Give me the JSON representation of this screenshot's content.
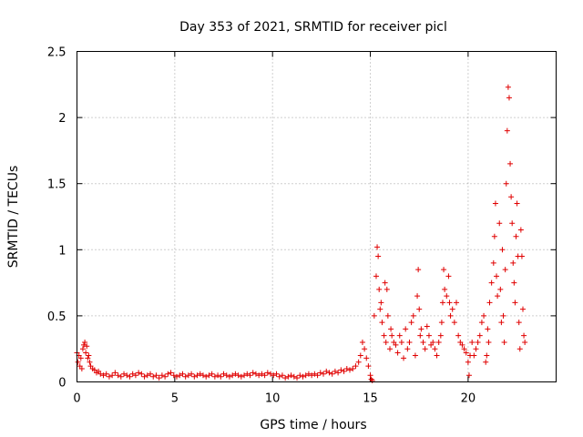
{
  "chart_data": {
    "type": "scatter",
    "title": "Day 353 of 2021, SRMTID for receiver picl",
    "xlabel": "GPS time / hours",
    "ylabel": "SRMTID / TECUs",
    "xlim": [
      0,
      24.5
    ],
    "ylim": [
      0,
      2.5
    ],
    "xticks": [
      0,
      5,
      10,
      15,
      20
    ],
    "xtick_labels": [
      "0",
      "5",
      "10",
      "15",
      "20"
    ],
    "yticks": [
      0,
      0.5,
      1,
      1.5,
      2,
      2.5
    ],
    "ytick_labels": [
      "0",
      "0.5",
      "1",
      "1.5",
      "2",
      "2.5"
    ],
    "grid": true,
    "marker": "+",
    "series": [
      {
        "name": "SRMTID",
        "color": "#e00000",
        "points": [
          [
            0.0,
            0.22
          ],
          [
            0.05,
            0.15
          ],
          [
            0.1,
            0.2
          ],
          [
            0.15,
            0.12
          ],
          [
            0.2,
            0.18
          ],
          [
            0.25,
            0.1
          ],
          [
            0.3,
            0.25
          ],
          [
            0.35,
            0.28
          ],
          [
            0.4,
            0.3
          ],
          [
            0.45,
            0.22
          ],
          [
            0.5,
            0.27
          ],
          [
            0.55,
            0.18
          ],
          [
            0.6,
            0.2
          ],
          [
            0.65,
            0.15
          ],
          [
            0.7,
            0.12
          ],
          [
            0.8,
            0.1
          ],
          [
            0.9,
            0.09
          ],
          [
            1.0,
            0.07
          ],
          [
            1.1,
            0.08
          ],
          [
            1.2,
            0.06
          ],
          [
            1.35,
            0.05
          ],
          [
            1.5,
            0.06
          ],
          [
            1.65,
            0.04
          ],
          [
            1.8,
            0.05
          ],
          [
            1.95,
            0.07
          ],
          [
            2.1,
            0.05
          ],
          [
            2.25,
            0.04
          ],
          [
            2.4,
            0.06
          ],
          [
            2.55,
            0.05
          ],
          [
            2.7,
            0.04
          ],
          [
            2.85,
            0.06
          ],
          [
            3.0,
            0.05
          ],
          [
            3.15,
            0.07
          ],
          [
            3.3,
            0.06
          ],
          [
            3.45,
            0.04
          ],
          [
            3.6,
            0.05
          ],
          [
            3.75,
            0.06
          ],
          [
            3.9,
            0.04
          ],
          [
            4.05,
            0.05
          ],
          [
            4.2,
            0.03
          ],
          [
            4.35,
            0.05
          ],
          [
            4.5,
            0.04
          ],
          [
            4.65,
            0.06
          ],
          [
            4.8,
            0.07
          ],
          [
            4.95,
            0.05
          ],
          [
            5.1,
            0.04
          ],
          [
            5.25,
            0.05
          ],
          [
            5.4,
            0.06
          ],
          [
            5.55,
            0.04
          ],
          [
            5.7,
            0.05
          ],
          [
            5.85,
            0.06
          ],
          [
            6.0,
            0.04
          ],
          [
            6.15,
            0.05
          ],
          [
            6.3,
            0.06
          ],
          [
            6.45,
            0.05
          ],
          [
            6.6,
            0.04
          ],
          [
            6.75,
            0.05
          ],
          [
            6.9,
            0.06
          ],
          [
            7.05,
            0.04
          ],
          [
            7.2,
            0.05
          ],
          [
            7.35,
            0.04
          ],
          [
            7.5,
            0.06
          ],
          [
            7.65,
            0.05
          ],
          [
            7.8,
            0.04
          ],
          [
            7.95,
            0.05
          ],
          [
            8.1,
            0.06
          ],
          [
            8.25,
            0.05
          ],
          [
            8.4,
            0.04
          ],
          [
            8.55,
            0.05
          ],
          [
            8.7,
            0.06
          ],
          [
            8.85,
            0.05
          ],
          [
            9.0,
            0.07
          ],
          [
            9.15,
            0.06
          ],
          [
            9.3,
            0.05
          ],
          [
            9.45,
            0.06
          ],
          [
            9.6,
            0.05
          ],
          [
            9.75,
            0.07
          ],
          [
            9.9,
            0.06
          ],
          [
            10.05,
            0.05
          ],
          [
            10.2,
            0.06
          ],
          [
            10.35,
            0.04
          ],
          [
            10.5,
            0.05
          ],
          [
            10.65,
            0.03
          ],
          [
            10.8,
            0.04
          ],
          [
            10.95,
            0.05
          ],
          [
            11.1,
            0.04
          ],
          [
            11.25,
            0.03
          ],
          [
            11.4,
            0.05
          ],
          [
            11.55,
            0.04
          ],
          [
            11.7,
            0.05
          ],
          [
            11.85,
            0.06
          ],
          [
            12.0,
            0.05
          ],
          [
            12.15,
            0.06
          ],
          [
            12.3,
            0.05
          ],
          [
            12.45,
            0.07
          ],
          [
            12.6,
            0.06
          ],
          [
            12.75,
            0.08
          ],
          [
            12.9,
            0.07
          ],
          [
            13.05,
            0.06
          ],
          [
            13.2,
            0.08
          ],
          [
            13.35,
            0.07
          ],
          [
            13.5,
            0.09
          ],
          [
            13.65,
            0.08
          ],
          [
            13.8,
            0.1
          ],
          [
            13.95,
            0.09
          ],
          [
            14.1,
            0.1
          ],
          [
            14.25,
            0.12
          ],
          [
            14.4,
            0.15
          ],
          [
            14.5,
            0.2
          ],
          [
            14.6,
            0.3
          ],
          [
            14.7,
            0.25
          ],
          [
            14.8,
            0.18
          ],
          [
            14.9,
            0.12
          ],
          [
            15.0,
            0.05
          ],
          [
            15.05,
            0.02
          ],
          [
            15.1,
            0.01
          ],
          [
            15.2,
            0.5
          ],
          [
            15.3,
            0.8
          ],
          [
            15.35,
            1.02
          ],
          [
            15.4,
            0.95
          ],
          [
            15.45,
            0.7
          ],
          [
            15.5,
            0.55
          ],
          [
            15.55,
            0.6
          ],
          [
            15.6,
            0.45
          ],
          [
            15.7,
            0.35
          ],
          [
            15.75,
            0.75
          ],
          [
            15.8,
            0.3
          ],
          [
            15.85,
            0.7
          ],
          [
            15.9,
            0.5
          ],
          [
            16.0,
            0.25
          ],
          [
            16.05,
            0.4
          ],
          [
            16.1,
            0.35
          ],
          [
            16.2,
            0.3
          ],
          [
            16.3,
            0.28
          ],
          [
            16.4,
            0.22
          ],
          [
            16.5,
            0.35
          ],
          [
            16.6,
            0.3
          ],
          [
            16.7,
            0.18
          ],
          [
            16.8,
            0.4
          ],
          [
            16.9,
            0.25
          ],
          [
            17.0,
            0.3
          ],
          [
            17.1,
            0.45
          ],
          [
            17.2,
            0.5
          ],
          [
            17.3,
            0.2
          ],
          [
            17.4,
            0.65
          ],
          [
            17.45,
            0.85
          ],
          [
            17.5,
            0.55
          ],
          [
            17.55,
            0.35
          ],
          [
            17.6,
            0.4
          ],
          [
            17.7,
            0.3
          ],
          [
            17.8,
            0.25
          ],
          [
            17.9,
            0.42
          ],
          [
            18.0,
            0.35
          ],
          [
            18.1,
            0.28
          ],
          [
            18.2,
            0.3
          ],
          [
            18.3,
            0.25
          ],
          [
            18.4,
            0.2
          ],
          [
            18.5,
            0.3
          ],
          [
            18.6,
            0.35
          ],
          [
            18.65,
            0.45
          ],
          [
            18.7,
            0.6
          ],
          [
            18.75,
            0.85
          ],
          [
            18.8,
            0.7
          ],
          [
            18.9,
            0.65
          ],
          [
            19.0,
            0.8
          ],
          [
            19.05,
            0.6
          ],
          [
            19.1,
            0.5
          ],
          [
            19.2,
            0.55
          ],
          [
            19.3,
            0.45
          ],
          [
            19.4,
            0.6
          ],
          [
            19.5,
            0.35
          ],
          [
            19.6,
            0.3
          ],
          [
            19.7,
            0.28
          ],
          [
            19.8,
            0.25
          ],
          [
            19.9,
            0.22
          ],
          [
            20.0,
            0.15
          ],
          [
            20.05,
            0.05
          ],
          [
            20.1,
            0.2
          ],
          [
            20.2,
            0.3
          ],
          [
            20.3,
            0.2
          ],
          [
            20.4,
            0.25
          ],
          [
            20.5,
            0.3
          ],
          [
            20.6,
            0.35
          ],
          [
            20.7,
            0.45
          ],
          [
            20.8,
            0.5
          ],
          [
            20.9,
            0.15
          ],
          [
            20.95,
            0.2
          ],
          [
            21.0,
            0.4
          ],
          [
            21.05,
            0.3
          ],
          [
            21.1,
            0.6
          ],
          [
            21.2,
            0.75
          ],
          [
            21.3,
            0.9
          ],
          [
            21.35,
            1.1
          ],
          [
            21.4,
            1.35
          ],
          [
            21.45,
            0.8
          ],
          [
            21.5,
            0.65
          ],
          [
            21.6,
            1.2
          ],
          [
            21.65,
            0.7
          ],
          [
            21.7,
            0.45
          ],
          [
            21.75,
            1.0
          ],
          [
            21.8,
            0.5
          ],
          [
            21.85,
            0.3
          ],
          [
            21.9,
            0.85
          ],
          [
            21.95,
            1.5
          ],
          [
            22.0,
            1.9
          ],
          [
            22.05,
            2.23
          ],
          [
            22.1,
            2.15
          ],
          [
            22.15,
            1.65
          ],
          [
            22.2,
            1.4
          ],
          [
            22.25,
            1.2
          ],
          [
            22.3,
            0.9
          ],
          [
            22.35,
            0.75
          ],
          [
            22.4,
            0.6
          ],
          [
            22.45,
            1.1
          ],
          [
            22.5,
            1.35
          ],
          [
            22.55,
            0.95
          ],
          [
            22.6,
            0.45
          ],
          [
            22.65,
            0.25
          ],
          [
            22.7,
            1.15
          ],
          [
            22.75,
            0.95
          ],
          [
            22.8,
            0.55
          ],
          [
            22.85,
            0.35
          ],
          [
            22.9,
            0.3
          ]
        ]
      }
    ]
  }
}
